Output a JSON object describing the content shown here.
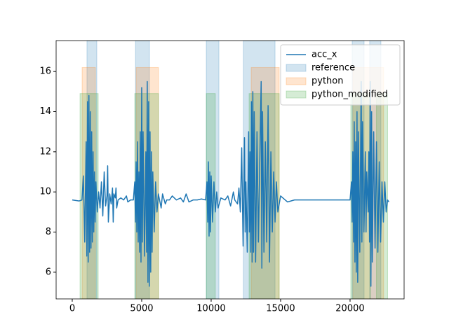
{
  "chart_data": {
    "type": "line",
    "xlim": [
      -1160,
      23890
    ],
    "xticks": [
      0,
      5000,
      10000,
      15000,
      20000
    ],
    "ylim": [
      4.67,
      17.54
    ],
    "yticks": [
      6,
      8,
      10,
      12,
      14,
      16
    ],
    "legend": "upper right",
    "x": [
      0,
      500,
      700,
      800,
      900,
      1000,
      1050,
      1100,
      1150,
      1200,
      1250,
      1300,
      1350,
      1400,
      1450,
      1500,
      1550,
      1600,
      1650,
      1700,
      1800,
      1900,
      2000,
      2100,
      2200,
      2300,
      2400,
      2500,
      2550,
      2600,
      2700,
      2800,
      2900,
      2950,
      3000,
      3100,
      3150,
      3200,
      3300,
      3500,
      3700,
      3900,
      4000,
      4200,
      4400,
      4500,
      4550,
      4600,
      4650,
      4700,
      4750,
      4800,
      4850,
      4900,
      4950,
      5000,
      5050,
      5100,
      5200,
      5300,
      5350,
      5400,
      5450,
      5500,
      5550,
      5600,
      5650,
      5700,
      5750,
      5800,
      5900,
      6000,
      6100,
      6200,
      6400,
      6500,
      6700,
      6800,
      7000,
      7200,
      7500,
      7800,
      8000,
      8200,
      8400,
      8700,
      9000,
      9300,
      9600,
      9700,
      9750,
      9800,
      9850,
      9900,
      9950,
      10000,
      10100,
      10200,
      10300,
      10400,
      10500,
      10700,
      11000,
      11200,
      11400,
      11600,
      11700,
      11900,
      12000,
      12100,
      12200,
      12250,
      12300,
      12400,
      12450,
      12500,
      12600,
      12700,
      12750,
      12800,
      12850,
      12900,
      12950,
      13000,
      13050,
      13100,
      13200,
      13300,
      13400,
      13600,
      13650,
      13700,
      13800,
      13900,
      14000,
      14100,
      14200,
      14300,
      14400,
      14500,
      14600,
      14700,
      14800,
      15000,
      15500,
      16000,
      16500,
      17000,
      17500,
      18000,
      18500,
      19000,
      19500,
      20000,
      20100,
      20150,
      20200,
      20250,
      20300,
      20350,
      20400,
      20450,
      20500,
      20550,
      20600,
      20700,
      20800,
      20850,
      20900,
      21000,
      21100,
      21150,
      21200,
      21300,
      21350,
      21400,
      21450,
      21500,
      21550,
      21600,
      21700,
      21800,
      21900,
      22000,
      22100,
      22200,
      22300,
      22400,
      22500,
      22600,
      22700,
      22800
    ],
    "series": [
      {
        "name": "acc_x",
        "color": "#1f77b4",
        "values": [
          9.6,
          9.55,
          9.6,
          10.8,
          7.5,
          12.5,
          6.8,
          14.5,
          6.5,
          14.8,
          7,
          14,
          7.2,
          13,
          7.5,
          12,
          8,
          11,
          8.5,
          10.5,
          9,
          10,
          9.2,
          10.5,
          8.8,
          11,
          9.3,
          9.8,
          11.3,
          8.5,
          9.9,
          9.4,
          10.2,
          8.5,
          9.9,
          9.7,
          10.2,
          9.2,
          9.6,
          9.7,
          9.6,
          9.8,
          9.5,
          9.6,
          9.6,
          10.5,
          8.5,
          11.5,
          8,
          12.5,
          7.5,
          11,
          7,
          13,
          6.5,
          15.2,
          7.5,
          13,
          6.8,
          12,
          7,
          15.5,
          5.5,
          14.5,
          5.3,
          13,
          6,
          12,
          7,
          11,
          8,
          10.5,
          9,
          9.9,
          9.2,
          9.9,
          9.4,
          9.6,
          9.6,
          9.8,
          9.6,
          9.7,
          9.5,
          9.9,
          9.5,
          9.6,
          9.6,
          9.65,
          9.6,
          10.5,
          8.5,
          11.5,
          7.8,
          11,
          8,
          10.8,
          8.5,
          10.5,
          9,
          10,
          9.2,
          9.7,
          9.6,
          9.8,
          9.3,
          10,
          9.6,
          9.4,
          10.2,
          9,
          12.2,
          9.6,
          7.3,
          12.7,
          8,
          10.5,
          7,
          13,
          8,
          12,
          7,
          14.5,
          6.5,
          15,
          7,
          14,
          6.5,
          13,
          7.5,
          15.5,
          6.2,
          14,
          7,
          12.5,
          7.5,
          14.3,
          6.5,
          12,
          8,
          11,
          8.5,
          10.5,
          9,
          9.8,
          9.5,
          9.6,
          9.6,
          9.6,
          9.6,
          9.6,
          9.6,
          9.6,
          9.6,
          9.6,
          10.5,
          8.5,
          12,
          7.5,
          13.5,
          6.5,
          12.5,
          6,
          14,
          5.5,
          13,
          7,
          15.5,
          7.5,
          13.5,
          8,
          12,
          8,
          11,
          9,
          12,
          7.5,
          15.5,
          5.3,
          14,
          6.5,
          13,
          7.2,
          12.5,
          7,
          11.5,
          7.5,
          10.5,
          8.5,
          10.5,
          9,
          9.6,
          9.5
        ]
      }
    ],
    "spans": [
      {
        "name": "reference",
        "color": "#1f77b4",
        "ranges": [
          [
            1060,
            1770
          ],
          [
            4550,
            5560
          ],
          [
            9650,
            10560
          ],
          [
            12320,
            14600
          ],
          [
            20150,
            21010
          ],
          [
            21410,
            22220
          ]
        ]
      },
      {
        "name": "python",
        "color": "#ff7f0e",
        "top": 16.2,
        "ranges": [
          [
            710,
            1670
          ],
          [
            4600,
            6210
          ],
          [
            12880,
            14900
          ],
          [
            20200,
            22420
          ]
        ]
      },
      {
        "name": "python_modified",
        "color": "#2ca02c",
        "top": 14.9,
        "ranges": [
          [
            560,
            1870
          ],
          [
            4500,
            6210
          ],
          [
            9650,
            10300
          ],
          [
            12730,
            14900
          ],
          [
            20050,
            21470
          ],
          [
            21900,
            22700
          ]
        ]
      }
    ]
  }
}
